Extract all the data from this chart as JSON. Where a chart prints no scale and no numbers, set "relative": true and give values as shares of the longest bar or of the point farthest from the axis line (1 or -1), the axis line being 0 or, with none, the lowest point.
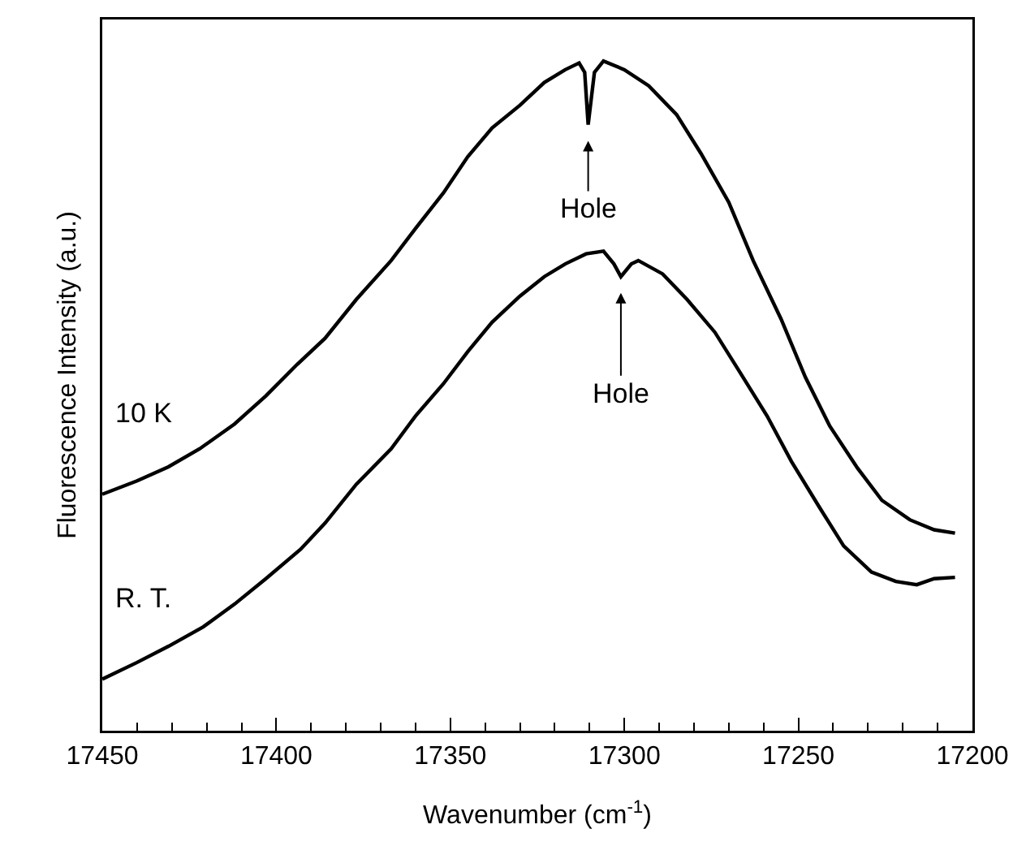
{
  "chart_data": {
    "type": "line",
    "xlabel": "Wavenumber (cm$^{-1}$)",
    "ylabel": "Fluorescence Intensity (a.u.)",
    "relative": true,
    "xlim": [
      17450,
      17200
    ],
    "xticks": [
      17450,
      {
        "value": 17440,
        "label": null
      },
      {
        "value": 17430,
        "label": null
      },
      {
        "value": 17420,
        "label": null
      },
      {
        "value": 17410,
        "label": null
      },
      17400,
      {
        "value": 17390,
        "label": null
      },
      {
        "value": 17380,
        "label": null
      },
      {
        "value": 17370,
        "label": null
      },
      {
        "value": 17360,
        "label": null
      },
      17350,
      {
        "value": 17340,
        "label": null
      },
      {
        "value": 17330,
        "label": null
      },
      {
        "value": 17320,
        "label": null
      },
      {
        "value": 17310,
        "label": null
      },
      17300,
      {
        "value": 17290,
        "label": null
      },
      {
        "value": 17280,
        "label": null
      },
      {
        "value": 17270,
        "label": null
      },
      {
        "value": 17260,
        "label": null
      },
      17250,
      {
        "value": 17240,
        "label": null
      },
      {
        "value": 17230,
        "label": null
      },
      {
        "value": 17220,
        "label": null
      },
      {
        "value": 17210,
        "label": null
      },
      17200
    ],
    "grid": false,
    "legend": false,
    "marker": "none",
    "line_style": "solid",
    "series": [
      {
        "name": "10 K",
        "color": "#000000",
        "x": [
          17450,
          17440,
          17431,
          17422,
          17412,
          17403,
          17394,
          17386,
          17377,
          17367,
          17360,
          17352,
          17345,
          17338,
          17330,
          17323,
          17317,
          17313,
          17311.4,
          17310.4,
          17309.5,
          17308.6,
          17306,
          17300,
          17293,
          17285,
          17278,
          17270,
          17263,
          17255,
          17248,
          17241,
          17233,
          17226,
          17218,
          17211,
          17205
        ],
        "values": [
          0.353,
          0.373,
          0.394,
          0.421,
          0.458,
          0.5,
          0.547,
          0.586,
          0.644,
          0.702,
          0.75,
          0.803,
          0.857,
          0.9,
          0.934,
          0.968,
          0.987,
          0.997,
          0.983,
          0.905,
          0.944,
          0.983,
          1.0,
          0.987,
          0.963,
          0.92,
          0.862,
          0.789,
          0.702,
          0.615,
          0.528,
          0.455,
          0.392,
          0.344,
          0.315,
          0.3,
          0.295
        ]
      },
      {
        "name": "R. T.",
        "color": "#000000",
        "x": [
          17450,
          17440,
          17431,
          17421,
          17412,
          17403,
          17393,
          17386,
          17377,
          17367,
          17360,
          17352,
          17345,
          17338,
          17330,
          17323,
          17317,
          17311,
          17306,
          17303,
          17301,
          17298,
          17296,
          17289,
          17282,
          17274,
          17267,
          17259,
          17252,
          17244,
          17237,
          17229,
          17222,
          17216,
          17211,
          17205
        ],
        "values": [
          0.077,
          0.102,
          0.126,
          0.155,
          0.189,
          0.227,
          0.271,
          0.31,
          0.368,
          0.421,
          0.47,
          0.518,
          0.566,
          0.61,
          0.649,
          0.678,
          0.697,
          0.712,
          0.716,
          0.697,
          0.678,
          0.697,
          0.702,
          0.682,
          0.644,
          0.595,
          0.537,
          0.47,
          0.402,
          0.334,
          0.276,
          0.237,
          0.223,
          0.218,
          0.227,
          0.229
        ]
      }
    ],
    "annotations": [
      {
        "text": "Hole",
        "x": 17310.4,
        "y": 0.905
      },
      {
        "text": "Hole",
        "x": 17301,
        "y": 0.678
      }
    ]
  }
}
